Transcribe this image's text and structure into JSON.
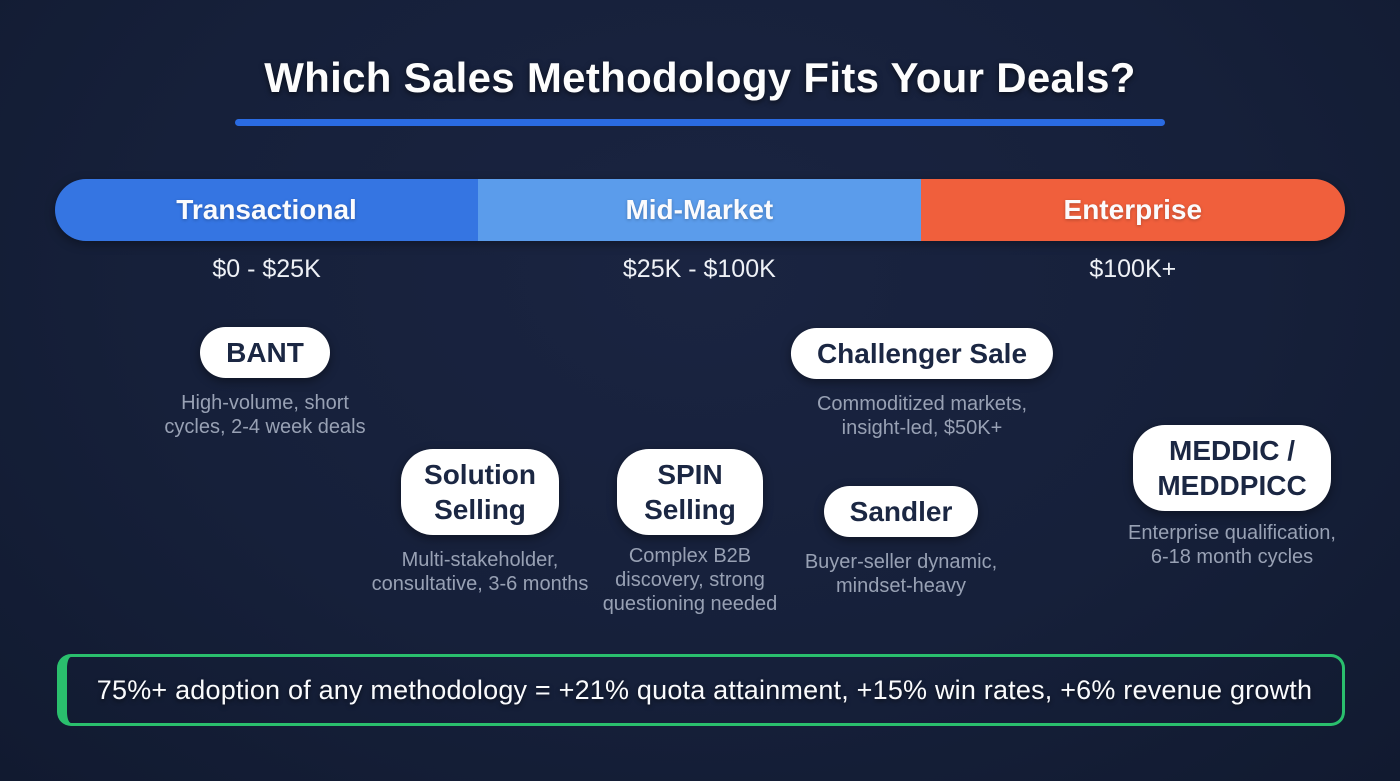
{
  "title": "Which Sales Methodology Fits Your Deals?",
  "deal_bands": [
    {
      "label": "Transactional",
      "range": "$0 - $25K",
      "color": "#3575e2"
    },
    {
      "label": "Mid-Market",
      "range": "$25K - $100K",
      "color": "#5b9ceb"
    },
    {
      "label": "Enterprise",
      "range": "$100K+",
      "color": "#f05f3c"
    }
  ],
  "methodologies": [
    {
      "name": "BANT",
      "description": "High-volume, short cycles, 2-4 week deals"
    },
    {
      "name": "Solution Selling",
      "description": "Multi-stakeholder, consultative, 3-6 months"
    },
    {
      "name": "SPIN Selling",
      "description": "Complex B2B discovery, strong questioning needed"
    },
    {
      "name": "Challenger Sale",
      "description": "Commoditized markets, insight-led, $50K+"
    },
    {
      "name": "Sandler",
      "description": "Buyer-seller dynamic, mindset-heavy"
    },
    {
      "name": "MEDDIC / MEDDPICC",
      "description": "Enterprise qualification, 6-18 month cycles"
    }
  ],
  "footer": {
    "text": "75%+ adoption of any methodology = +21% quota attainment, +15% win rates, +6% revenue growth"
  },
  "colors": {
    "background": "#16203a",
    "title_underline": "#2a6be2",
    "footer_border": "#2abf6d",
    "pill_background": "#ffffff",
    "pill_text": "#1b2743",
    "description_text": "#98a1b4"
  }
}
